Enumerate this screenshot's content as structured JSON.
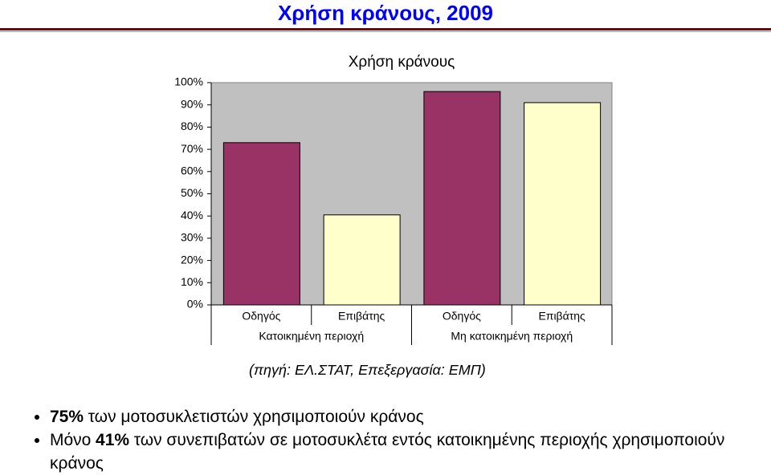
{
  "slide_title": "Χρήση κράνους, 2009",
  "chart_data": {
    "type": "bar",
    "title": "Χρήση κράνους",
    "categories": [
      "Οδηγός",
      "Επιβάτης",
      "Οδηγός",
      "Επιβάτης"
    ],
    "groups": [
      {
        "label": "Κατοικημένη περιοχή",
        "span": 2
      },
      {
        "label": "Μη κατοικημένη περιοχή",
        "span": 2
      }
    ],
    "values": [
      73,
      40.5,
      96,
      91
    ],
    "colors": [
      "#993366",
      "#ffffcc",
      "#993366",
      "#ffffcc"
    ],
    "ylim": [
      0,
      100
    ],
    "yticks": [
      {
        "value": 0,
        "label": "0%"
      },
      {
        "value": 10,
        "label": "10%"
      },
      {
        "value": 20,
        "label": "20%"
      },
      {
        "value": 30,
        "label": "30%"
      },
      {
        "value": 40,
        "label": "40%"
      },
      {
        "value": 50,
        "label": "50%"
      },
      {
        "value": 60,
        "label": "60%"
      },
      {
        "value": 70,
        "label": "70%"
      },
      {
        "value": 80,
        "label": "80%"
      },
      {
        "value": 90,
        "label": "90%"
      },
      {
        "value": 100,
        "label": "100%"
      }
    ],
    "plot_background": "#c0c0c0"
  },
  "source": "(πηγή: ΕΛ.ΣΤΑΤ, Επεξεργασία: ΕΜΠ)",
  "bullets": [
    [
      {
        "text": "75%",
        "bold": true
      },
      {
        "text": "των μοτοσυκλετιστών χρησιμοποιούν κράνος",
        "bold": false
      }
    ],
    [
      {
        "text": "Μόνο",
        "bold": false
      },
      {
        "text": "41%",
        "bold": true
      },
      {
        "text": "των συνεπιβατών σε μοτοσυκλέτα εντός κατοικημένης περιοχής χρησιμοποιούν κράνος",
        "bold": false
      }
    ]
  ]
}
